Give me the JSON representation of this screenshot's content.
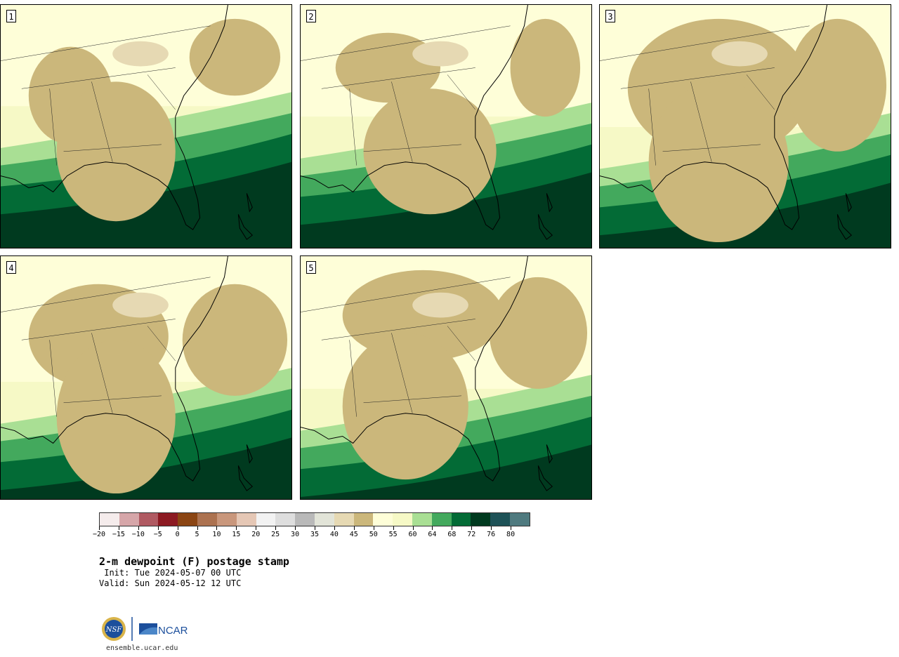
{
  "panels": [
    {
      "label": "1"
    },
    {
      "label": "2"
    },
    {
      "label": "3"
    },
    {
      "label": "4"
    },
    {
      "label": "5"
    }
  ],
  "colorbar": {
    "tick_labels": [
      "−20",
      "−15",
      "−10",
      "−5",
      "0",
      "5",
      "10",
      "15",
      "20",
      "25",
      "30",
      "35",
      "40",
      "45",
      "50",
      "55",
      "60",
      "64",
      "68",
      "72",
      "76",
      "80"
    ],
    "colors": [
      "#f5ecec",
      "#d6a6a9",
      "#b05a62",
      "#8c1a22",
      "#8b4513",
      "#ac7250",
      "#c9977c",
      "#e5c7b5",
      "#f2f2f2",
      "#dedede",
      "#b9b9b9",
      "#e2e4d8",
      "#e6d9b3",
      "#cbb77b",
      "#fefed8",
      "#f6f9c6",
      "#a9df94",
      "#43a95d",
      "#036b36",
      "#003a1f",
      "#1e5257",
      "#4f7a7f"
    ]
  },
  "legend_colors": {
    "land_dry": "#cbb77b",
    "land_light": "#e6d9b3",
    "land_moist": "#fefed8",
    "pale": "#f6f9c6",
    "light_green": "#a9df94",
    "mid_green": "#43a95d",
    "green": "#036b36",
    "dark_green": "#003a1f"
  },
  "title": "2-m dewpoint (F) postage stamp",
  "init": " Init: Tue 2024-05-07 00 UTC",
  "valid": "Valid: Sun 2024-05-12 12 UTC",
  "logo": {
    "nsf": "NSF",
    "ncar": "NCAR"
  },
  "site": "ensemble.ucar.edu"
}
